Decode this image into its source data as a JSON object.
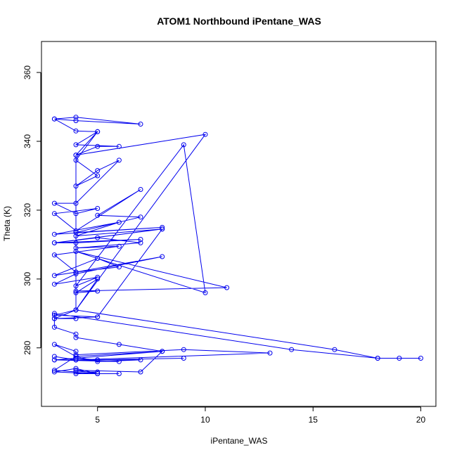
{
  "chart_data": {
    "type": "line",
    "title": "ATOM1 Northbound iPentane_WAS",
    "xlabel": "iPentane_WAS",
    "ylabel": "Theta (K)",
    "xlim": [
      2.4,
      20.7
    ],
    "ylim": [
      263,
      369
    ],
    "x_ticks": [
      5,
      10,
      15,
      20
    ],
    "y_ticks": [
      280,
      300,
      320,
      340,
      360
    ],
    "grid": false,
    "series_color": "#0000ee",
    "series": [
      {
        "name": "iPentane_WAS vs Theta",
        "points": [
          [
            3,
            346.5
          ],
          [
            4,
            347
          ],
          [
            7,
            345
          ],
          [
            4,
            346
          ],
          [
            3,
            346.5
          ],
          [
            4,
            343
          ],
          [
            5,
            342.8
          ],
          [
            4,
            339
          ],
          [
            6,
            338.5
          ],
          [
            5,
            338.5
          ],
          [
            4,
            336
          ],
          [
            5,
            342.8
          ],
          [
            4,
            334.5
          ],
          [
            5,
            330
          ],
          [
            4,
            327
          ],
          [
            5,
            331.5
          ],
          [
            6,
            334.5
          ],
          [
            4,
            322
          ],
          [
            3,
            322
          ],
          [
            4,
            319
          ],
          [
            5,
            320.5
          ],
          [
            3,
            319
          ],
          [
            4,
            314
          ],
          [
            7,
            326
          ],
          [
            5,
            318.5
          ],
          [
            7,
            318
          ],
          [
            4,
            313.5
          ],
          [
            8,
            315
          ],
          [
            3,
            313
          ],
          [
            6,
            316.5
          ],
          [
            4,
            312.5
          ],
          [
            8,
            314.5
          ],
          [
            3,
            310.5
          ],
          [
            7,
            311.5
          ],
          [
            4,
            310.5
          ],
          [
            3,
            310.5
          ],
          [
            5,
            312
          ],
          [
            7,
            310.5
          ],
          [
            4,
            309
          ],
          [
            6,
            309.5
          ],
          [
            3,
            307
          ],
          [
            4,
            302
          ],
          [
            3,
            301
          ],
          [
            5,
            306
          ],
          [
            6,
            303.5
          ],
          [
            4,
            302
          ],
          [
            8,
            306.5
          ],
          [
            4,
            301.5
          ],
          [
            3,
            298.5
          ],
          [
            5,
            300.5
          ],
          [
            4,
            298
          ],
          [
            9,
            339
          ],
          [
            10,
            296
          ],
          [
            4,
            308
          ],
          [
            11,
            297.5
          ],
          [
            4,
            296.5
          ],
          [
            5,
            296.5
          ],
          [
            4,
            296
          ],
          [
            5,
            300
          ],
          [
            4,
            291
          ],
          [
            10,
            342
          ],
          [
            4,
            336
          ],
          [
            4,
            291
          ],
          [
            3,
            289.5
          ],
          [
            5,
            289
          ],
          [
            8,
            314.5
          ],
          [
            5,
            289
          ],
          [
            3,
            288.5
          ],
          [
            4,
            288.5
          ],
          [
            3,
            288.5
          ],
          [
            4,
            291
          ],
          [
            16,
            279.5
          ],
          [
            18,
            277
          ],
          [
            19,
            277
          ],
          [
            20,
            277
          ],
          [
            18,
            277
          ],
          [
            14,
            279.5
          ],
          [
            3,
            290
          ],
          [
            3,
            286
          ],
          [
            4,
            284
          ],
          [
            4,
            283
          ],
          [
            6,
            281
          ],
          [
            8,
            279
          ],
          [
            4,
            277.5
          ],
          [
            3,
            281
          ],
          [
            4,
            279
          ],
          [
            4,
            278
          ],
          [
            9,
            279.5
          ],
          [
            13,
            278.5
          ],
          [
            4,
            276.5
          ],
          [
            3,
            277.5
          ],
          [
            4,
            276.5
          ],
          [
            3,
            276.5
          ],
          [
            4,
            277
          ],
          [
            5,
            276.5
          ],
          [
            9,
            277
          ],
          [
            5,
            276.5
          ],
          [
            3,
            276.5
          ],
          [
            6,
            276
          ],
          [
            4,
            276.5
          ],
          [
            7,
            276.5
          ],
          [
            5,
            276
          ],
          [
            4,
            277.5
          ],
          [
            3,
            273.5
          ],
          [
            4,
            273
          ],
          [
            5,
            273
          ],
          [
            4,
            272.5
          ],
          [
            6,
            272.5
          ],
          [
            5,
            272.5
          ],
          [
            4,
            274
          ],
          [
            3,
            273
          ],
          [
            5,
            272.5
          ],
          [
            4,
            273.5
          ],
          [
            7,
            273
          ],
          [
            8,
            279
          ],
          [
            4,
            277
          ]
        ]
      }
    ]
  }
}
